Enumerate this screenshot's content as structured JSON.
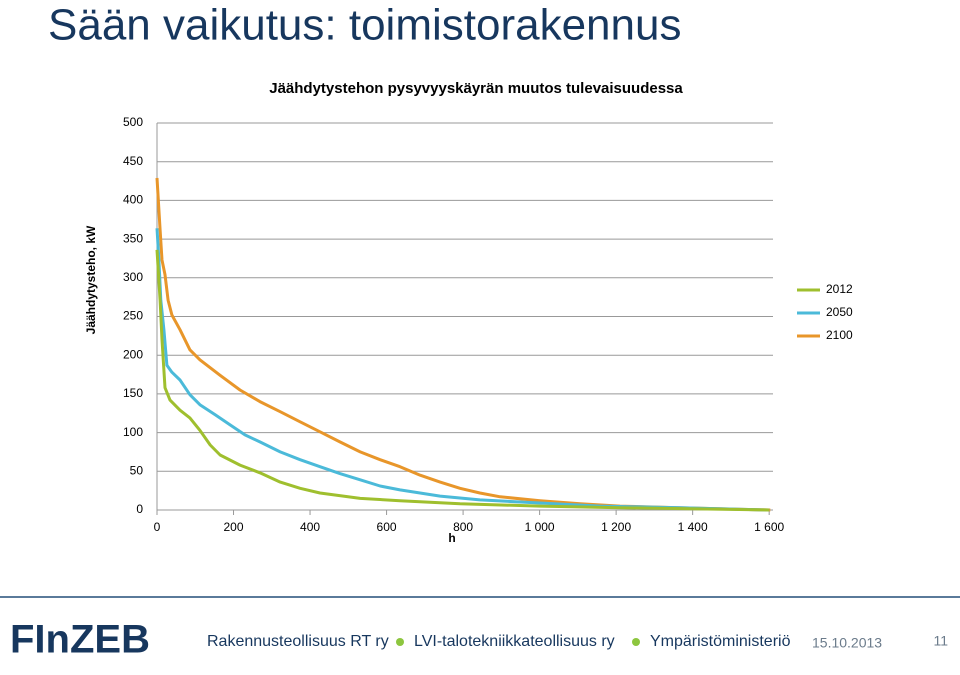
{
  "slide_title": "Sään vaikutus: toimistorakennus",
  "chart_data": {
    "type": "line",
    "title": "Jäähdytystehon pysyvyyskäyrän muutos tulevaisuudessa",
    "y_label": "Jäähdytysteho, kW",
    "x_label": "h",
    "xlim": [
      0,
      1610
    ],
    "ylim": [
      0,
      500
    ],
    "xticks": [
      0,
      200,
      400,
      600,
      800,
      {
        "value": 1000,
        "label": "1 000"
      },
      {
        "value": 1200,
        "label": "1 200"
      },
      {
        "value": 1400,
        "label": "1 400"
      },
      {
        "value": 1600,
        "label": "1 600"
      }
    ],
    "yticks": [
      0,
      50,
      100,
      150,
      200,
      250,
      300,
      350,
      400,
      450,
      500
    ],
    "grid": true,
    "legend": "right",
    "series": [
      {
        "name": "2012",
        "color": "#9fbf2e",
        "x": [
          0,
          8,
          13,
          21,
          34,
          60,
          86,
          112,
          139,
          165,
          217,
          269,
          322,
          374,
          426,
          531,
          635,
          792,
          1001,
          1210,
          1600
        ],
        "values": [
          336,
          271,
          220,
          158,
          142,
          129,
          119,
          103,
          84,
          71,
          58,
          48,
          36,
          28,
          22,
          15,
          12,
          8,
          5,
          3,
          0
        ]
      },
      {
        "name": "2050",
        "color": "#4bbad9",
        "x": [
          0,
          5,
          10,
          18,
          26,
          39,
          60,
          86,
          112,
          152,
          191,
          230,
          269,
          322,
          374,
          426,
          478,
          531,
          583,
          635,
          740,
          844,
          1001,
          1158,
          1367,
          1600
        ],
        "values": [
          364,
          323,
          271,
          233,
          187,
          178,
          168,
          149,
          136,
          123,
          110,
          97,
          88,
          75,
          65,
          56,
          47,
          39,
          31,
          26,
          18,
          13,
          9,
          5,
          3,
          0
        ]
      },
      {
        "name": "2100",
        "color": "#e8962a",
        "x": [
          0,
          8,
          13,
          21,
          29,
          39,
          60,
          86,
          112,
          165,
          217,
          269,
          322,
          374,
          426,
          478,
          531,
          583,
          635,
          688,
          740,
          792,
          844,
          897,
          1001,
          1106,
          1210,
          1367,
          1472,
          1603
        ],
        "values": [
          429,
          362,
          323,
          304,
          271,
          252,
          233,
          207,
          194,
          174,
          155,
          140,
          127,
          114,
          101,
          88,
          75,
          65,
          56,
          45,
          36,
          28,
          22,
          17,
          12,
          8,
          5,
          3,
          1.5,
          0
        ]
      }
    ]
  },
  "footer": {
    "logo": "FInZEB",
    "items": [
      "Rakennusteollisuus RT ry",
      "LVI-talotekniikkateollisuus ry",
      "Ympäristöministeriö"
    ],
    "date": "15.10.2013",
    "page": "11"
  }
}
